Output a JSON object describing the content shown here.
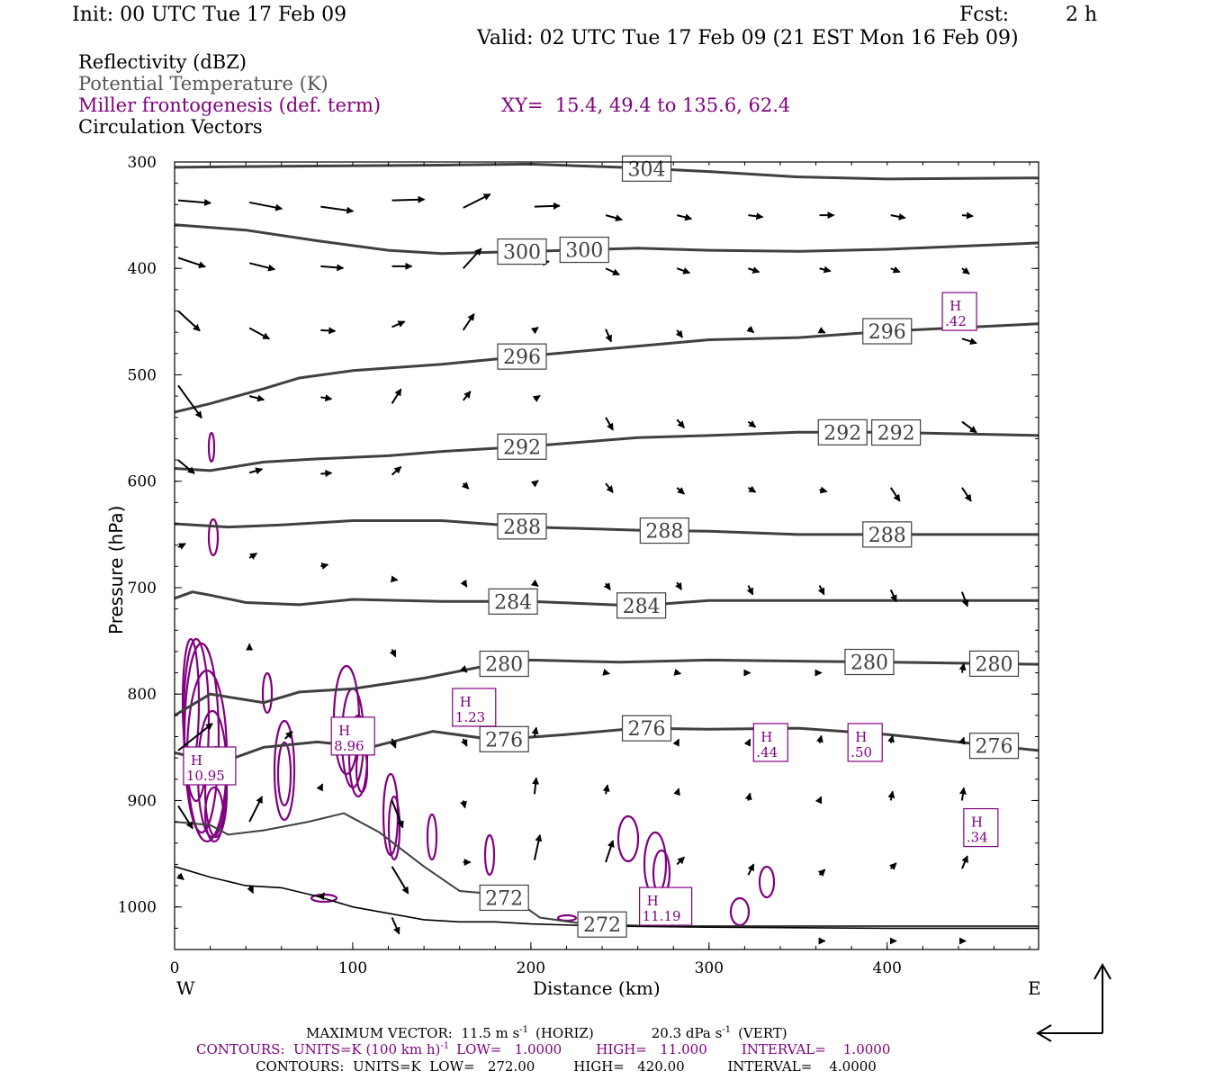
{
  "header": {
    "init": "Init: 00 UTC Tue 17 Feb 09",
    "fcst_label": "Fcst:",
    "fcst_value": "2 h",
    "valid": "Valid: 02 UTC Tue 17 Feb 09 (21 EST Mon 16 Feb 09)"
  },
  "legend": {
    "line1": "Reflectivity (dBZ)",
    "line2": "Potential Temperature (K)",
    "line3": "Miller frontogenesis (def. term)",
    "xy": "XY=  15.4, 49.4 to 135.6, 62.4",
    "line4": "Circulation Vectors"
  },
  "colors": {
    "theta": "#404040",
    "fronto": "#800080",
    "vector": "#000000",
    "legend_gray": "#555555"
  },
  "footer": {
    "max_vector_a": "MAXIMUM VECTOR:  11.5 m s",
    "max_vector_b": "(HORIZ)",
    "max_vector_c": "20.3 dPa s",
    "max_vector_d": "(VERT)",
    "sup_neg1": "-1",
    "fronto_a": "CONTOURS:  UNITS=K (100 km h)",
    "fronto_b": "LOW=   1.0000        HIGH=   11.000        INTERVAL=    1.0000",
    "theta_contours": "CONTOURS:  UNITS=K  LOW=   272.00         HIGH=   420.00          INTERVAL=    4.0000"
  },
  "chart_data": {
    "type": "cross-section",
    "xlabel": "Distance (km)",
    "ylabel": "Pressure (hPa)",
    "x_left_label": "W",
    "x_right_label": "E",
    "xlim": [
      0,
      485
    ],
    "ylim": [
      300,
      1040
    ],
    "xticks": [
      0,
      100,
      200,
      300,
      400
    ],
    "yticks": [
      300,
      400,
      500,
      600,
      700,
      800,
      900,
      1000
    ],
    "theta_isentropes": [
      {
        "level": 304,
        "points": [
          [
            0,
            305
          ],
          [
            60,
            304
          ],
          [
            150,
            303
          ],
          [
            200,
            302
          ],
          [
            250,
            305
          ],
          [
            300,
            309
          ],
          [
            350,
            314
          ],
          [
            400,
            316
          ],
          [
            485,
            315
          ]
        ]
      },
      {
        "level": 300,
        "points": [
          [
            0,
            359
          ],
          [
            40,
            364
          ],
          [
            80,
            374
          ],
          [
            120,
            383
          ],
          [
            150,
            386
          ],
          [
            200,
            384
          ],
          [
            260,
            381
          ],
          [
            300,
            383
          ],
          [
            350,
            384
          ],
          [
            400,
            382
          ],
          [
            485,
            376
          ]
        ]
      },
      {
        "level": 296,
        "points": [
          [
            0,
            535
          ],
          [
            20,
            527
          ],
          [
            50,
            513
          ],
          [
            70,
            503
          ],
          [
            100,
            496
          ],
          [
            150,
            490
          ],
          [
            200,
            482
          ],
          [
            260,
            473
          ],
          [
            300,
            467
          ],
          [
            350,
            465
          ],
          [
            400,
            459
          ],
          [
            485,
            452
          ]
        ]
      },
      {
        "level": 292,
        "points": [
          [
            0,
            588
          ],
          [
            20,
            590
          ],
          [
            50,
            582
          ],
          [
            80,
            579
          ],
          [
            120,
            576
          ],
          [
            150,
            572
          ],
          [
            200,
            567
          ],
          [
            260,
            559
          ],
          [
            300,
            557
          ],
          [
            350,
            554
          ],
          [
            400,
            554
          ],
          [
            485,
            557
          ]
        ]
      },
      {
        "level": 288,
        "points": [
          [
            0,
            640
          ],
          [
            30,
            643
          ],
          [
            60,
            641
          ],
          [
            100,
            637
          ],
          [
            150,
            637
          ],
          [
            200,
            643
          ],
          [
            260,
            646
          ],
          [
            300,
            647
          ],
          [
            350,
            650
          ],
          [
            400,
            650
          ],
          [
            485,
            650
          ]
        ]
      },
      {
        "level": 284,
        "points": [
          [
            0,
            710
          ],
          [
            10,
            704
          ],
          [
            20,
            707
          ],
          [
            40,
            714
          ],
          [
            70,
            716
          ],
          [
            100,
            711
          ],
          [
            150,
            713
          ],
          [
            200,
            713
          ],
          [
            260,
            717
          ],
          [
            300,
            712
          ],
          [
            400,
            712
          ],
          [
            485,
            712
          ]
        ]
      },
      {
        "level": 280,
        "points": [
          [
            0,
            820
          ],
          [
            20,
            800
          ],
          [
            50,
            808
          ],
          [
            70,
            798
          ],
          [
            100,
            795
          ],
          [
            140,
            785
          ],
          [
            170,
            775
          ],
          [
            200,
            768
          ],
          [
            250,
            770
          ],
          [
            300,
            768
          ],
          [
            400,
            770
          ],
          [
            485,
            772
          ]
        ]
      },
      {
        "level": 276,
        "points": [
          [
            0,
            855
          ],
          [
            25,
            865
          ],
          [
            50,
            850
          ],
          [
            80,
            845
          ],
          [
            110,
            850
          ],
          [
            145,
            835
          ],
          [
            180,
            843
          ],
          [
            220,
            838
          ],
          [
            260,
            832
          ],
          [
            300,
            833
          ],
          [
            350,
            832
          ],
          [
            400,
            838
          ],
          [
            485,
            853
          ]
        ]
      },
      {
        "level": 272,
        "points": [
          [
            0,
            920
          ],
          [
            20,
            923
          ],
          [
            30,
            932
          ],
          [
            50,
            928
          ],
          [
            75,
            920
          ],
          [
            95,
            912
          ],
          [
            115,
            930
          ],
          [
            140,
            962
          ],
          [
            160,
            985
          ],
          [
            180,
            988
          ],
          [
            195,
            998
          ],
          [
            205,
            1010
          ],
          [
            230,
            1016
          ],
          [
            270,
            1018
          ],
          [
            485,
            1018
          ]
        ]
      }
    ],
    "fronto_maxima": [
      {
        "label": "H",
        "value": "10.95",
        "x": 5,
        "p": 870
      },
      {
        "label": "H",
        "value": "8.96",
        "x": 88,
        "p": 842
      },
      {
        "label": "H",
        "value": "1.23",
        "x": 156,
        "p": 815
      },
      {
        "label": "H",
        "value": "11.19",
        "x": 261,
        "p": 1002
      },
      {
        "label": "H",
        "value": ".44",
        "x": 325,
        "p": 848
      },
      {
        "label": "H",
        "value": ".50",
        "x": 378,
        "p": 848
      },
      {
        "label": "H",
        "value": ".42",
        "x": 431,
        "p": 443
      },
      {
        "label": "H",
        "value": ".34",
        "x": 443,
        "p": 928
      }
    ],
    "vectors": [
      [
        0,
        336,
        36,
        3
      ],
      [
        40,
        338,
        36,
        7
      ],
      [
        80,
        342,
        36,
        5
      ],
      [
        120,
        336,
        36,
        -1
      ],
      [
        160,
        343,
        30,
        -15
      ],
      [
        200,
        342,
        28,
        -1
      ],
      [
        240,
        350,
        18,
        5
      ],
      [
        280,
        350,
        16,
        4
      ],
      [
        320,
        350,
        16,
        2
      ],
      [
        360,
        350,
        16,
        0
      ],
      [
        400,
        350,
        16,
        3
      ],
      [
        440,
        350,
        12,
        1
      ],
      [
        0,
        390,
        30,
        10
      ],
      [
        40,
        395,
        28,
        7
      ],
      [
        80,
        398,
        25,
        2
      ],
      [
        120,
        398,
        22,
        0
      ],
      [
        160,
        400,
        20,
        -22
      ],
      [
        200,
        396,
        16,
        -3
      ],
      [
        240,
        400,
        15,
        7
      ],
      [
        280,
        400,
        14,
        5
      ],
      [
        320,
        400,
        12,
        4
      ],
      [
        360,
        400,
        12,
        3
      ],
      [
        400,
        400,
        10,
        4
      ],
      [
        440,
        400,
        8,
        6
      ],
      [
        0,
        440,
        24,
        22
      ],
      [
        40,
        456,
        22,
        12
      ],
      [
        80,
        458,
        16,
        1
      ],
      [
        120,
        455,
        14,
        -6
      ],
      [
        160,
        458,
        12,
        -18
      ],
      [
        200,
        458,
        4,
        -3
      ],
      [
        240,
        457,
        6,
        14
      ],
      [
        280,
        458,
        6,
        8
      ],
      [
        320,
        456,
        6,
        5
      ],
      [
        360,
        458,
        6,
        3
      ],
      [
        400,
        460,
        12,
        6
      ],
      [
        440,
        466,
        16,
        5
      ],
      [
        0,
        510,
        26,
        36
      ],
      [
        40,
        520,
        16,
        4
      ],
      [
        80,
        521,
        12,
        2
      ],
      [
        120,
        527,
        10,
        -16
      ],
      [
        160,
        524,
        8,
        -10
      ],
      [
        200,
        523,
        6,
        -4
      ],
      [
        240,
        540,
        8,
        14
      ],
      [
        280,
        542,
        8,
        9
      ],
      [
        320,
        544,
        8,
        6
      ],
      [
        360,
        545,
        8,
        3
      ],
      [
        400,
        545,
        12,
        10
      ],
      [
        440,
        544,
        16,
        12
      ],
      [
        0,
        580,
        18,
        15
      ],
      [
        40,
        592,
        14,
        -4
      ],
      [
        80,
        593,
        12,
        -1
      ],
      [
        120,
        594,
        10,
        -9
      ],
      [
        160,
        602,
        6,
        6
      ],
      [
        200,
        602,
        4,
        -3
      ],
      [
        240,
        602,
        8,
        10
      ],
      [
        280,
        606,
        8,
        7
      ],
      [
        320,
        606,
        8,
        5
      ],
      [
        360,
        608,
        8,
        2
      ],
      [
        400,
        606,
        10,
        15
      ],
      [
        440,
        606,
        10,
        15
      ],
      [
        0,
        662,
        8,
        -4
      ],
      [
        40,
        672,
        8,
        -5
      ],
      [
        80,
        680,
        8,
        -2
      ],
      [
        120,
        692,
        6,
        1
      ],
      [
        160,
        694,
        4,
        6
      ],
      [
        200,
        696,
        4,
        3
      ],
      [
        240,
        696,
        5,
        7
      ],
      [
        280,
        695,
        5,
        8
      ],
      [
        320,
        698,
        5,
        10
      ],
      [
        360,
        698,
        5,
        10
      ],
      [
        400,
        702,
        6,
        13
      ],
      [
        440,
        704,
        6,
        16
      ],
      [
        40,
        758,
        0,
        -6
      ],
      [
        120,
        758,
        4,
        8
      ],
      [
        160,
        776,
        4,
        4
      ],
      [
        240,
        780,
        4,
        1
      ],
      [
        280,
        780,
        4,
        1
      ],
      [
        320,
        780,
        2,
        0
      ],
      [
        360,
        780,
        2,
        0
      ],
      [
        400,
        782,
        2,
        -8
      ],
      [
        440,
        780,
        2,
        -10
      ],
      [
        0,
        853,
        38,
        -30
      ],
      [
        60,
        842,
        8,
        -8
      ],
      [
        120,
        842,
        4,
        10
      ],
      [
        160,
        842,
        4,
        8
      ],
      [
        200,
        840,
        2,
        -10
      ],
      [
        280,
        846,
        2,
        -4
      ],
      [
        320,
        846,
        2,
        -4
      ],
      [
        360,
        846,
        2,
        -8
      ],
      [
        400,
        846,
        2,
        -8
      ],
      [
        440,
        846,
        2,
        -6
      ],
      [
        0,
        905,
        16,
        25
      ],
      [
        40,
        920,
        14,
        -28
      ],
      [
        80,
        888,
        2,
        -4
      ],
      [
        120,
        900,
        12,
        30
      ],
      [
        160,
        900,
        2,
        8
      ],
      [
        200,
        894,
        2,
        -18
      ],
      [
        240,
        894,
        2,
        -10
      ],
      [
        280,
        894,
        2,
        -6
      ],
      [
        320,
        900,
        2,
        -8
      ],
      [
        360,
        900,
        2,
        -4
      ],
      [
        400,
        900,
        2,
        -10
      ],
      [
        440,
        900,
        2,
        -14
      ],
      [
        0,
        970,
        6,
        5
      ],
      [
        40,
        980,
        4,
        8
      ],
      [
        80,
        992,
        4,
        -6
      ],
      [
        120,
        962,
        18,
        30
      ],
      [
        160,
        958,
        8,
        0
      ],
      [
        200,
        956,
        6,
        -28
      ],
      [
        240,
        958,
        8,
        -24
      ],
      [
        280,
        960,
        8,
        -8
      ],
      [
        320,
        970,
        6,
        -12
      ],
      [
        360,
        970,
        6,
        -6
      ],
      [
        400,
        964,
        6,
        -6
      ],
      [
        440,
        964,
        6,
        -14
      ],
      [
        120,
        1010,
        8,
        18
      ],
      [
        240,
        1020,
        10,
        -6
      ],
      [
        360,
        1032,
        6,
        0
      ],
      [
        400,
        1032,
        6,
        0
      ],
      [
        440,
        1032,
        4,
        0
      ]
    ],
    "terrain": [
      [
        0,
        962
      ],
      [
        20,
        972
      ],
      [
        40,
        980
      ],
      [
        60,
        982
      ],
      [
        80,
        990
      ],
      [
        100,
        1000
      ],
      [
        120,
        1006
      ],
      [
        140,
        1012
      ],
      [
        160,
        1014
      ],
      [
        180,
        1014
      ],
      [
        200,
        1016
      ],
      [
        240,
        1018
      ],
      [
        300,
        1019
      ],
      [
        400,
        1020
      ],
      [
        485,
        1020
      ]
    ]
  }
}
